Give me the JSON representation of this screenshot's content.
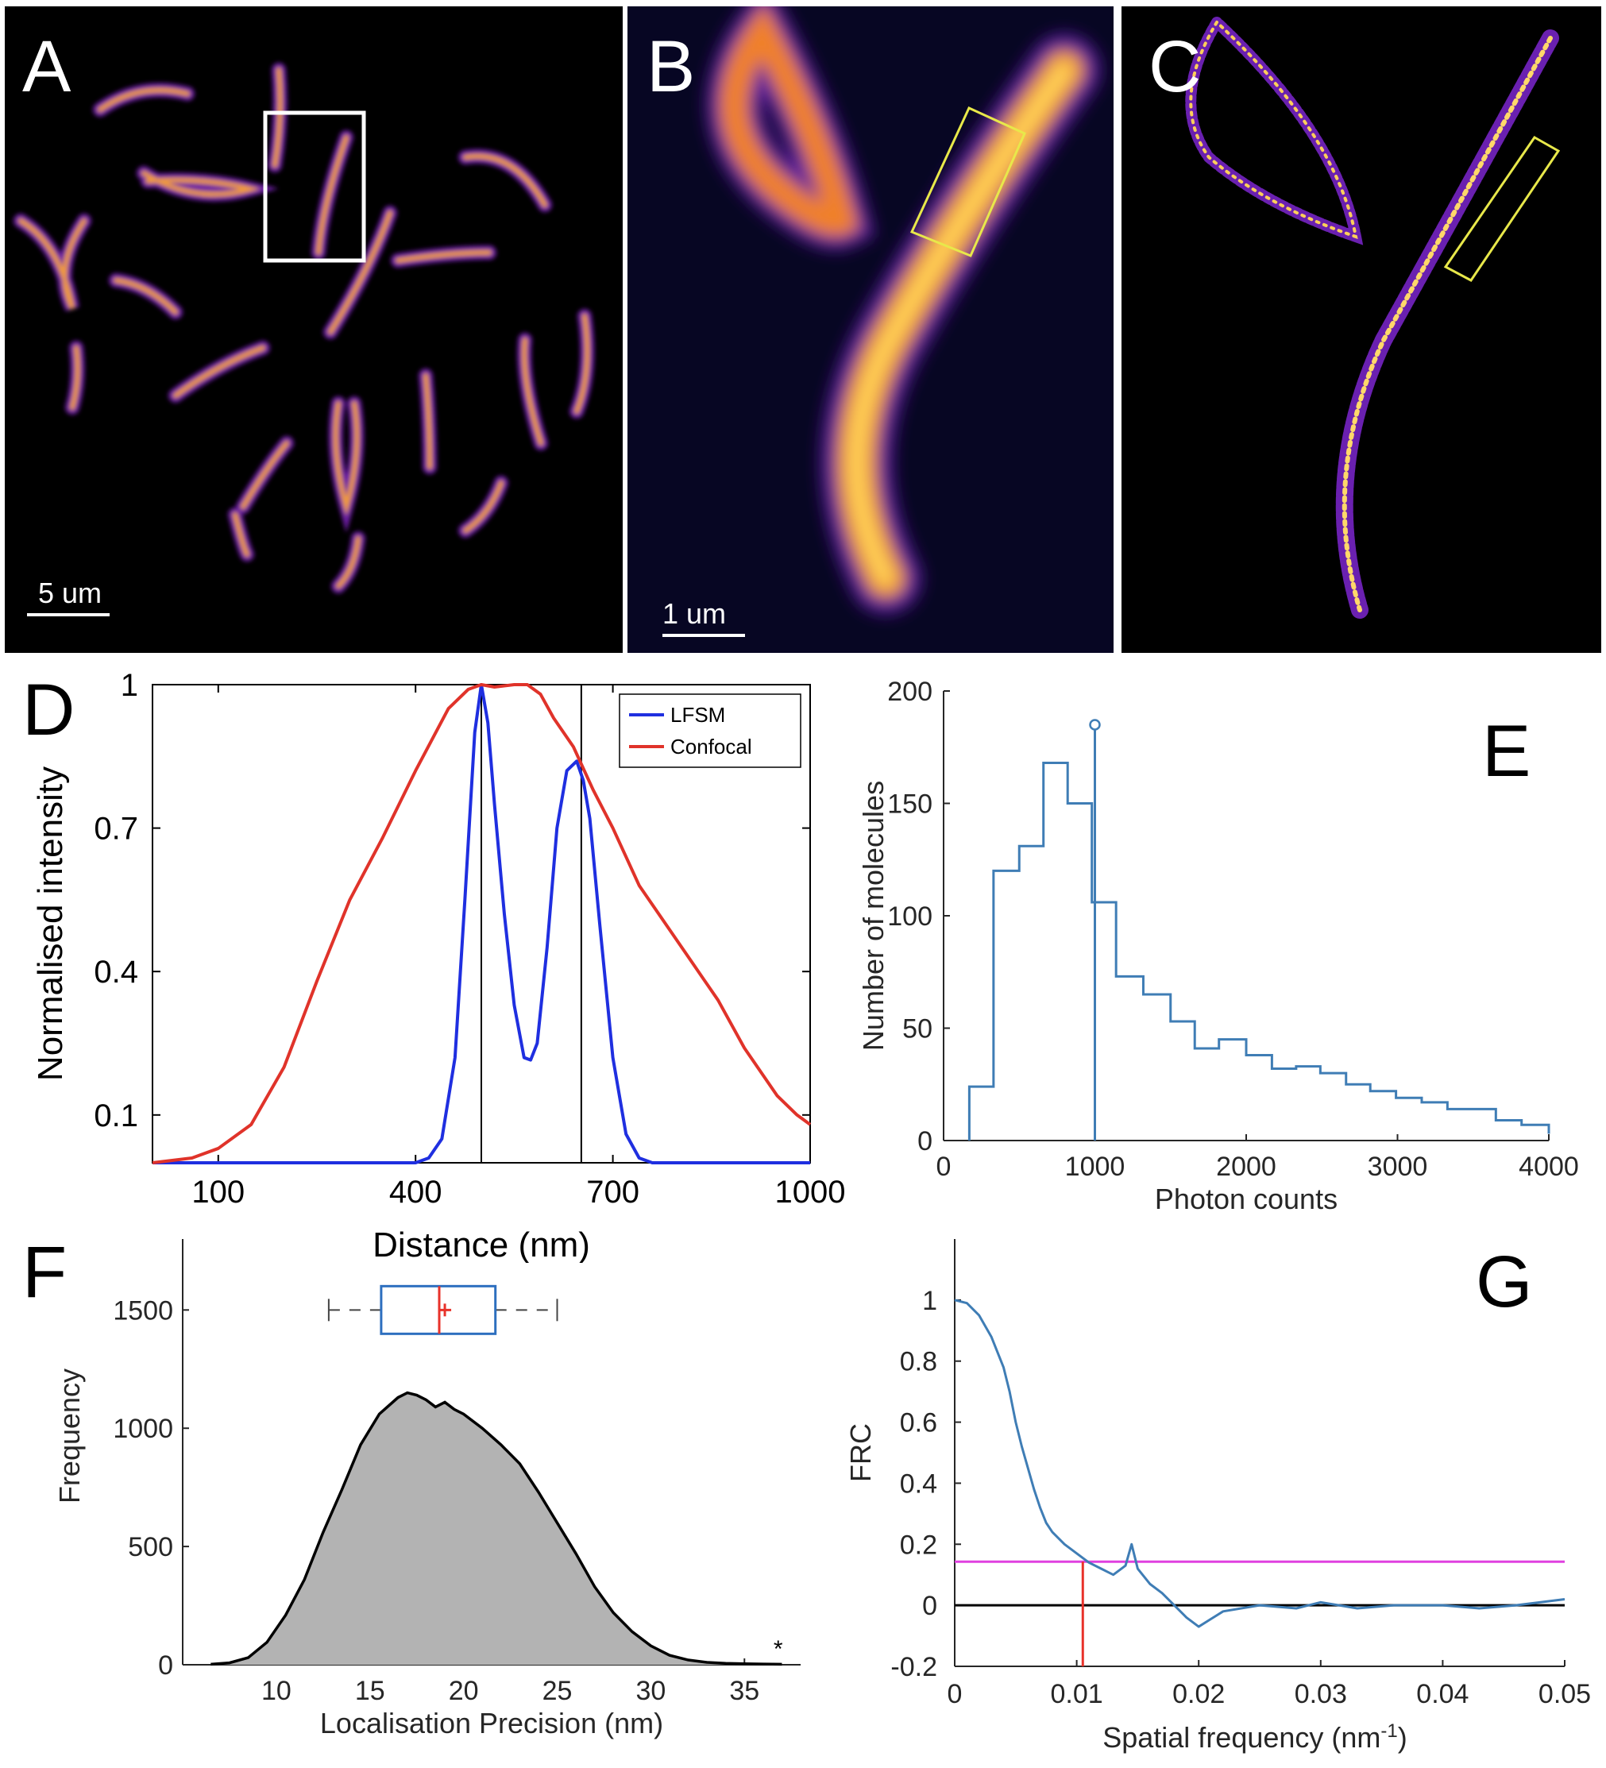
{
  "figure": {
    "panels": [
      "A",
      "B",
      "C",
      "D",
      "E",
      "F",
      "G"
    ],
    "scale_bars": {
      "A": "5 um",
      "B": "1 um"
    }
  },
  "colors": {
    "lfsm": "#1f2fe0",
    "confocal": "#e0332a",
    "steel": "#3f7db5",
    "threshold": "#e040e0",
    "cutoff": "#e8322a",
    "box_median": "#e8322a",
    "box": "#2d6fbf",
    "hist_fill": "#b3b3b3"
  },
  "chart_data": [
    {
      "panel": "D",
      "type": "line",
      "xlabel": "Distance (nm)",
      "ylabel": "Normalised intensity",
      "xlim": [
        0,
        1000
      ],
      "ylim": [
        0,
        1
      ],
      "xticks": [
        100,
        400,
        700,
        1000
      ],
      "xtick_labels": [
        "100",
        "400",
        "700",
        "1000"
      ],
      "yticks": [
        0.1,
        0.4,
        0.7,
        1
      ],
      "ytick_labels": [
        "0.1",
        "0.4",
        "0.7",
        "1"
      ],
      "legend": [
        "LFSM",
        "Confocal"
      ],
      "legend_position": "top-right",
      "vlines": [
        500,
        652
      ],
      "series": [
        {
          "name": "LFSM",
          "x": [
            0,
            400,
            420,
            440,
            460,
            475,
            490,
            500,
            510,
            520,
            535,
            550,
            565,
            575,
            585,
            600,
            615,
            630,
            645,
            655,
            665,
            680,
            700,
            720,
            740,
            760,
            780,
            1000
          ],
          "y": [
            0,
            0,
            0.01,
            0.05,
            0.22,
            0.55,
            0.9,
            1.0,
            0.92,
            0.75,
            0.52,
            0.33,
            0.22,
            0.215,
            0.25,
            0.45,
            0.7,
            0.82,
            0.84,
            0.8,
            0.72,
            0.5,
            0.22,
            0.06,
            0.01,
            0,
            0,
            0
          ]
        },
        {
          "name": "Confocal",
          "x": [
            0,
            30,
            60,
            100,
            150,
            200,
            250,
            300,
            350,
            400,
            450,
            480,
            500,
            520,
            550,
            570,
            590,
            610,
            640,
            670,
            700,
            740,
            780,
            820,
            860,
            900,
            950,
            980,
            1000
          ],
          "y": [
            0,
            0.005,
            0.01,
            0.03,
            0.08,
            0.2,
            0.38,
            0.55,
            0.68,
            0.82,
            0.95,
            0.99,
            1.0,
            0.995,
            1.0,
            1.0,
            0.98,
            0.93,
            0.87,
            0.78,
            0.7,
            0.58,
            0.5,
            0.42,
            0.34,
            0.24,
            0.14,
            0.1,
            0.08
          ]
        }
      ]
    },
    {
      "panel": "E",
      "type": "bar",
      "xlabel": "Photon counts",
      "ylabel": "Number of molecules",
      "xlim": [
        0,
        4000
      ],
      "ylim": [
        0,
        200
      ],
      "xticks": [
        0,
        1000,
        2000,
        3000,
        4000
      ],
      "xtick_labels": [
        "0",
        "1000",
        "2000",
        "3000",
        "4000"
      ],
      "yticks": [
        0,
        50,
        100,
        150,
        200
      ],
      "ytick_labels": [
        "0",
        "50",
        "100",
        "150",
        "200"
      ],
      "bin_edges": [
        170,
        330,
        500,
        660,
        820,
        980,
        1140,
        1320,
        1500,
        1660,
        1820,
        2000,
        2170,
        2330,
        2490,
        2660,
        2820,
        2990,
        3160,
        3330,
        3490,
        3650,
        3820,
        4000
      ],
      "counts": [
        24,
        120,
        131,
        168,
        150,
        106,
        73,
        65,
        53,
        41,
        45,
        38,
        32,
        33,
        30,
        25,
        22,
        19,
        17,
        14,
        14,
        9,
        7,
        3
      ],
      "stem": {
        "x": 1000,
        "y": 185
      }
    },
    {
      "panel": "F",
      "type": "area",
      "xlabel": "Localisation Precision (nm)",
      "ylabel": "Frequency",
      "xlim": [
        5,
        38
      ],
      "ylim": [
        0,
        1800
      ],
      "xticks": [
        10,
        15,
        20,
        25,
        30,
        35
      ],
      "xtick_labels": [
        "10",
        "15",
        "20",
        "25",
        "30",
        "35"
      ],
      "yticks": [
        0,
        500,
        1000,
        1500
      ],
      "ytick_labels": [
        "0",
        "500",
        "1000",
        "1500"
      ],
      "x": [
        6.5,
        7.5,
        8.5,
        9.5,
        10.5,
        11.5,
        12.5,
        13.5,
        14.5,
        15.5,
        16.5,
        17.0,
        17.5,
        18.0,
        18.5,
        19.0,
        19.5,
        20.0,
        21,
        22,
        23,
        24,
        25,
        26,
        27,
        28,
        29,
        30,
        31,
        32,
        33,
        34,
        35,
        36,
        37
      ],
      "y": [
        2,
        8,
        30,
        95,
        210,
        360,
        560,
        740,
        930,
        1060,
        1130,
        1150,
        1140,
        1120,
        1090,
        1110,
        1080,
        1060,
        1000,
        930,
        850,
        730,
        600,
        470,
        330,
        220,
        140,
        80,
        40,
        20,
        10,
        6,
        4,
        3,
        2
      ],
      "box": {
        "whisker_low": 12.8,
        "q1": 15.6,
        "median": 18.7,
        "mean": 19.0,
        "q3": 21.7,
        "whisker_high": 25.0,
        "y": 1500
      },
      "annotation": "*"
    },
    {
      "panel": "G",
      "type": "line",
      "xlabel": "Spatial frequency (nm",
      "xlabel_superscript": "-1",
      "xlabel_suffix": ")",
      "ylabel": "FRC",
      "xlim": [
        0,
        0.05
      ],
      "ylim": [
        -0.2,
        1.2
      ],
      "xticks": [
        0,
        0.01,
        0.02,
        0.03,
        0.04,
        0.05
      ],
      "xtick_labels": [
        "0",
        "0.01",
        "0.02",
        "0.03",
        "0.04",
        "0.05"
      ],
      "yticks": [
        -0.2,
        0,
        0.2,
        0.4,
        0.6,
        0.8,
        1
      ],
      "ytick_labels": [
        "-0.2",
        "0",
        "0.2",
        "0.4",
        "0.6",
        "0.8",
        "1"
      ],
      "threshold_y": 0.143,
      "cutoff_x": 0.0105,
      "series": [
        {
          "x": [
            0,
            0.001,
            0.002,
            0.003,
            0.004,
            0.0045,
            0.005,
            0.0055,
            0.006,
            0.0065,
            0.007,
            0.0075,
            0.008,
            0.009,
            0.01,
            0.011,
            0.012,
            0.013,
            0.014,
            0.0145,
            0.015,
            0.016,
            0.017,
            0.018,
            0.019,
            0.02,
            0.022,
            0.025,
            0.028,
            0.03,
            0.033,
            0.036,
            0.04,
            0.043,
            0.046,
            0.05
          ],
          "y": [
            1.0,
            0.99,
            0.95,
            0.88,
            0.78,
            0.7,
            0.6,
            0.52,
            0.45,
            0.38,
            0.32,
            0.27,
            0.24,
            0.2,
            0.17,
            0.14,
            0.12,
            0.1,
            0.13,
            0.2,
            0.12,
            0.07,
            0.04,
            0.0,
            -0.04,
            -0.07,
            -0.02,
            0.0,
            -0.01,
            0.01,
            -0.01,
            0.0,
            0.0,
            -0.01,
            0.0,
            0.02
          ]
        }
      ]
    }
  ]
}
